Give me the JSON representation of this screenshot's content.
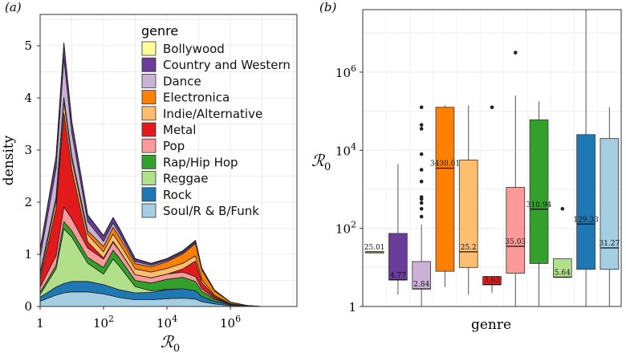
{
  "chart_data": [
    {
      "panel_label": "(a)",
      "type": "area",
      "stacked": true,
      "title": "",
      "xlabel": "ℛ",
      "xlabel_sub": "0",
      "ylabel": "density",
      "x_scale": "log10",
      "x_range_log10": [
        0,
        8.1
      ],
      "ylim": [
        0,
        5.6
      ],
      "yticks": [
        0,
        1,
        2,
        3,
        4,
        5
      ],
      "xticks": [
        {
          "base": "1",
          "exp": "",
          "log10": 0
        },
        {
          "base": "10",
          "exp": "2",
          "log10": 2
        },
        {
          "base": "10",
          "exp": "4",
          "log10": 4
        },
        {
          "base": "10",
          "exp": "6",
          "log10": 6
        }
      ],
      "grid": true,
      "legend_title": "genre",
      "legend_position": "top-right",
      "x_log10": [
        0,
        0.5,
        0.75,
        1.0,
        1.5,
        2.0,
        2.3,
        2.5,
        3.0,
        3.5,
        4.0,
        4.5,
        4.9,
        5.1,
        5.5,
        6.0,
        6.5,
        7.0,
        8.1
      ],
      "series": [
        {
          "name": "Soul/R & B/Funk",
          "color": "#a6cee3",
          "values": [
            0.1,
            0.22,
            0.26,
            0.28,
            0.28,
            0.24,
            0.2,
            0.17,
            0.13,
            0.13,
            0.15,
            0.16,
            0.14,
            0.09,
            0.05,
            0.015,
            0.005,
            0,
            0
          ]
        },
        {
          "name": "Rock",
          "color": "#1f78b4",
          "values": [
            0.08,
            0.15,
            0.18,
            0.2,
            0.2,
            0.18,
            0.16,
            0.15,
            0.13,
            0.14,
            0.17,
            0.18,
            0.16,
            0.1,
            0.05,
            0.02,
            0.005,
            0,
            0
          ]
        },
        {
          "name": "Reggae",
          "color": "#b2df8a",
          "values": [
            0.05,
            0.35,
            1.05,
            0.85,
            0.35,
            0.2,
            0.55,
            0.45,
            0.12,
            0.03,
            0.01,
            0,
            0,
            0,
            0,
            0,
            0,
            0,
            0
          ]
        },
        {
          "name": "Rap/Hip Hop",
          "color": "#33a02c",
          "values": [
            0.04,
            0.07,
            0.14,
            0.12,
            0.11,
            0.13,
            0.17,
            0.16,
            0.12,
            0.15,
            0.19,
            0.22,
            0.18,
            0.1,
            0.04,
            0.01,
            0,
            0,
            0
          ]
        },
        {
          "name": "Pop",
          "color": "#fb9a99",
          "values": [
            0.1,
            0.18,
            0.28,
            0.23,
            0.18,
            0.16,
            0.15,
            0.14,
            0.11,
            0.1,
            0.1,
            0.1,
            0.09,
            0.05,
            0.02,
            0.005,
            0,
            0,
            0
          ]
        },
        {
          "name": "Metal",
          "color": "#e31a1c",
          "values": [
            0.15,
            0.9,
            1.8,
            0.95,
            0.12,
            0.02,
            0.02,
            0.01,
            0,
            0,
            0,
            0.06,
            0.3,
            0.12,
            0.03,
            0,
            0,
            0,
            0
          ]
        },
        {
          "name": "Indie/Alternative",
          "color": "#fdbf6f",
          "values": [
            0.08,
            0.15,
            0.22,
            0.18,
            0.14,
            0.12,
            0.14,
            0.13,
            0.11,
            0.11,
            0.11,
            0.11,
            0.1,
            0.06,
            0.02,
            0.005,
            0,
            0,
            0
          ]
        },
        {
          "name": "Electronica",
          "color": "#ff7f00",
          "values": [
            0.05,
            0.07,
            0.08,
            0.07,
            0.07,
            0.1,
            0.13,
            0.12,
            0.1,
            0.1,
            0.13,
            0.18,
            0.24,
            0.18,
            0.09,
            0.03,
            0.01,
            0,
            0
          ]
        },
        {
          "name": "Dance",
          "color": "#cab2d6",
          "values": [
            0.3,
            0.55,
            0.75,
            0.45,
            0.18,
            0.1,
            0.08,
            0.07,
            0.04,
            0.03,
            0.02,
            0.02,
            0.02,
            0.01,
            0.005,
            0,
            0,
            0,
            0
          ]
        },
        {
          "name": "Country and Western",
          "color": "#6a3d9a",
          "values": [
            0.15,
            0.22,
            0.28,
            0.2,
            0.12,
            0.1,
            0.1,
            0.09,
            0.05,
            0.03,
            0.03,
            0.03,
            0.03,
            0.02,
            0.01,
            0,
            0,
            0,
            0
          ]
        },
        {
          "name": "Bollywood",
          "color": "#ffff99",
          "values": [
            0.01,
            0.02,
            0.02,
            0.02,
            0.01,
            0.01,
            0.01,
            0.01,
            0.01,
            0.01,
            0.01,
            0.01,
            0.01,
            0.005,
            0,
            0,
            0,
            0,
            0
          ]
        }
      ]
    },
    {
      "panel_label": "(b)",
      "type": "box",
      "xlabel": "genre",
      "ylabel": "ℛ",
      "ylabel_sub": "0",
      "y_scale": "log10",
      "y_range_log10": [
        0,
        7.6
      ],
      "yticks": [
        {
          "base": "1",
          "exp": "",
          "log10": 0
        },
        {
          "base": "10",
          "exp": "2",
          "log10": 2
        },
        {
          "base": "10",
          "exp": "4",
          "log10": 4
        },
        {
          "base": "10",
          "exp": "6",
          "log10": 6
        }
      ],
      "grid": true,
      "boxes": [
        {
          "genre": "Bollywood",
          "color": "#ffff99",
          "median_label": "25.01",
          "log10": {
            "whisker_low": 1.4,
            "q1": 1.4,
            "median": 1.4,
            "q3": 1.4,
            "whisker_high": 1.4
          },
          "outliers_log10": []
        },
        {
          "genre": "Country and Western",
          "color": "#6a3d9a",
          "median_label": "4.77",
          "log10": {
            "whisker_low": 0.3,
            "q1": 0.68,
            "median": 0.68,
            "q3": 1.87,
            "whisker_high": 3.65
          },
          "outliers_log10": []
        },
        {
          "genre": "Dance",
          "color": "#cab2d6",
          "median_label": "2.84",
          "log10": {
            "whisker_low": 0.0,
            "q1": 0.45,
            "median": 0.45,
            "q3": 1.15,
            "whisker_high": 2.1
          },
          "outliers_log10": [
            2.3,
            2.5,
            2.65,
            2.75,
            2.8,
            3.2,
            3.5,
            3.9,
            4.55,
            4.65,
            5.1
          ]
        },
        {
          "genre": "Electronica",
          "color": "#ff7f00",
          "median_label": "3430.01",
          "log10": {
            "whisker_low": 0.5,
            "q1": 0.9,
            "median": 3.54,
            "q3": 5.1,
            "whisker_high": 5.15
          },
          "outliers_log10": []
        },
        {
          "genre": "Indie/Alternative",
          "color": "#fdbf6f",
          "median_label": "25.2",
          "log10": {
            "whisker_low": 0.3,
            "q1": 1.0,
            "median": 1.4,
            "q3": 3.75,
            "whisker_high": 5.15
          },
          "outliers_log10": []
        },
        {
          "genre": "Metal",
          "color": "#e31a1c",
          "median_label": "3.63",
          "log10": {
            "whisker_low": 0.35,
            "q1": 0.56,
            "median": 0.56,
            "q3": 0.77,
            "whisker_high": 0.77
          },
          "outliers_log10": [
            5.1
          ]
        },
        {
          "genre": "Pop",
          "color": "#fb9a99",
          "median_label": "35.03",
          "log10": {
            "whisker_low": 0.0,
            "q1": 0.85,
            "median": 1.54,
            "q3": 3.05,
            "whisker_high": 5.4
          },
          "outliers_log10": [
            6.5
          ]
        },
        {
          "genre": "Rap/Hip Hop",
          "color": "#33a02c",
          "median_label": "310.94",
          "log10": {
            "whisker_low": 0.0,
            "q1": 1.1,
            "median": 2.49,
            "q3": 4.78,
            "whisker_high": 5.25
          },
          "outliers_log10": []
        },
        {
          "genre": "Reggae",
          "color": "#b2df8a",
          "median_label": "5.64",
          "log10": {
            "whisker_low": 0.75,
            "q1": 0.75,
            "median": 0.75,
            "q3": 1.22,
            "whisker_high": 1.22
          },
          "outliers_log10": [
            2.5
          ]
        },
        {
          "genre": "Rock",
          "color": "#1f78b4",
          "median_label": "129.33",
          "log10": {
            "whisker_low": 0.0,
            "q1": 0.95,
            "median": 2.11,
            "q3": 4.4,
            "whisker_high": 7.6
          },
          "outliers_log10": []
        },
        {
          "genre": "Soul/R & B/Funk",
          "color": "#a6cee3",
          "median_label": "31.27",
          "log10": {
            "whisker_low": 0.0,
            "q1": 0.95,
            "median": 1.5,
            "q3": 4.3,
            "whisker_high": 5.1
          },
          "outliers_log10": []
        }
      ]
    }
  ]
}
